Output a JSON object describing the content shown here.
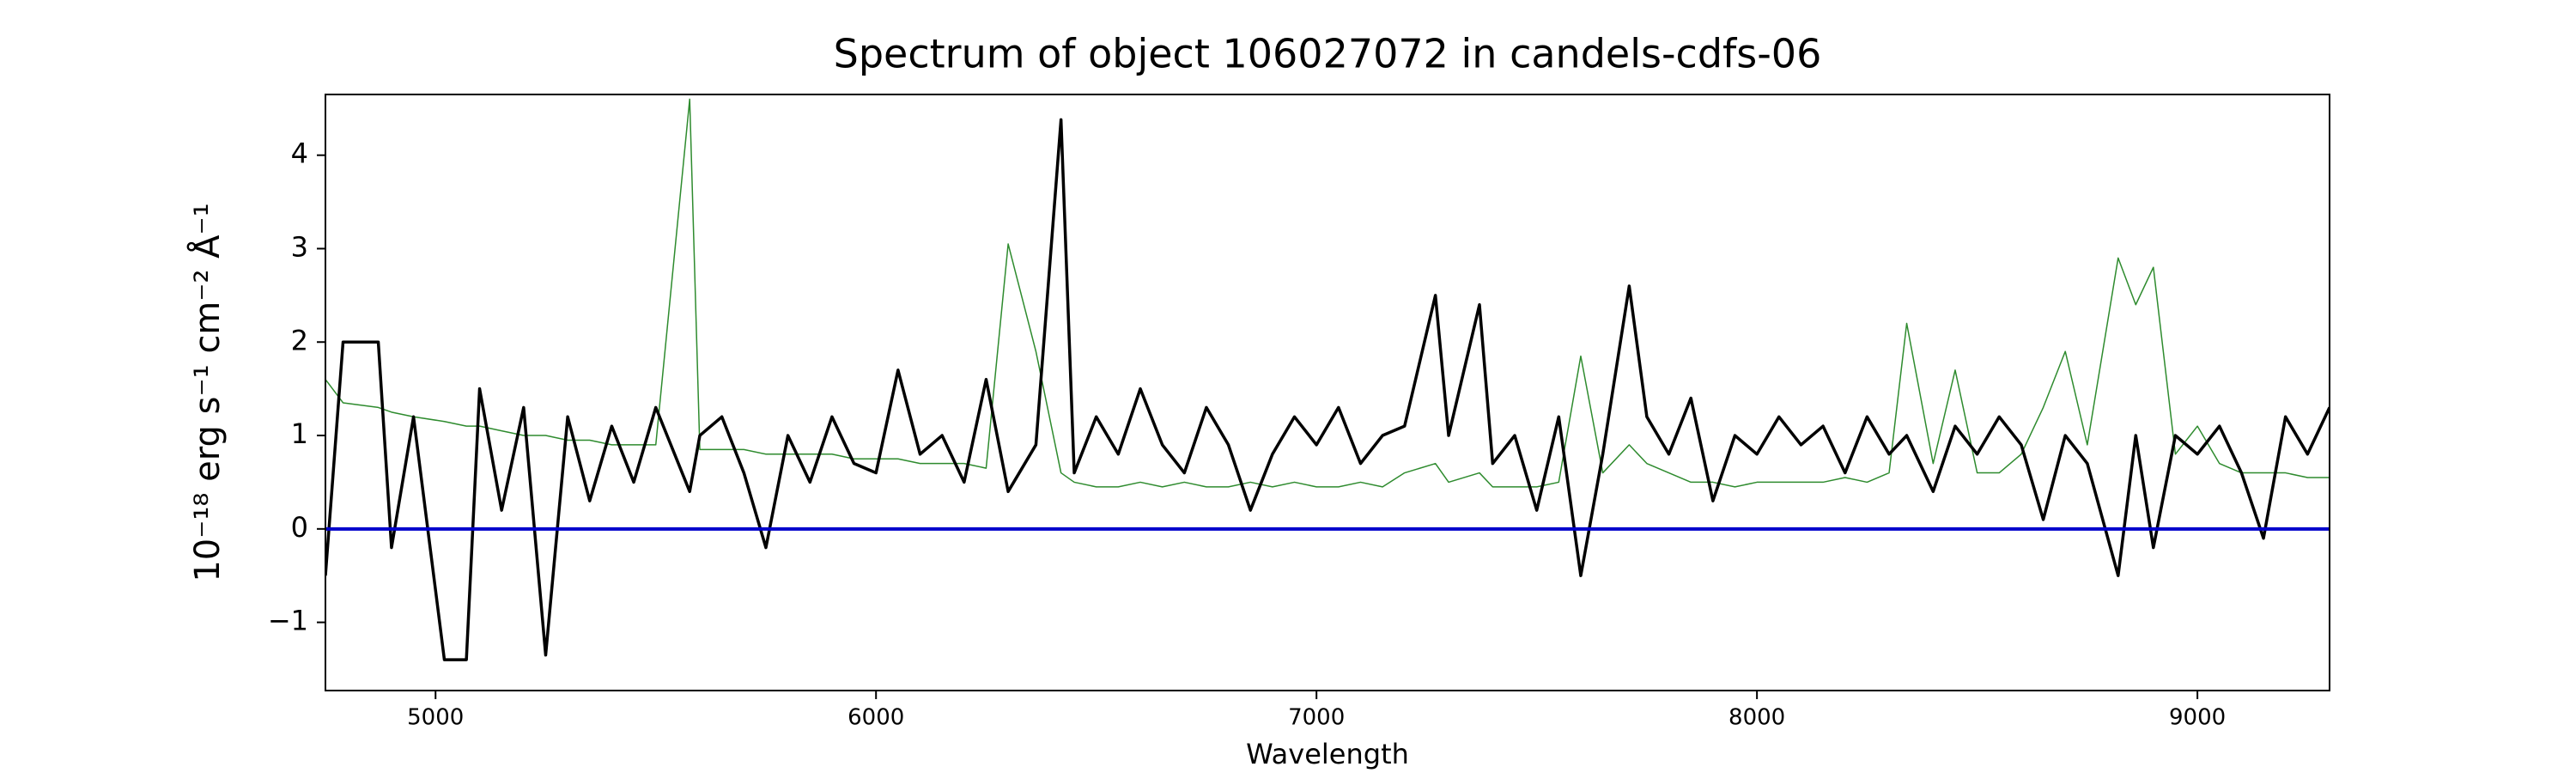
{
  "chart_data": {
    "type": "line",
    "title": "Spectrum of object 106027072 in candels-cdfs-06",
    "xlabel": "Wavelength",
    "ylabel": "10⁻¹⁸ erg s⁻¹ cm⁻² Å⁻¹",
    "x": [
      4750,
      4790,
      4870,
      4900,
      4950,
      5020,
      5070,
      5100,
      5150,
      5200,
      5250,
      5300,
      5350,
      5400,
      5450,
      5500,
      5577,
      5600,
      5650,
      5700,
      5750,
      5800,
      5850,
      5900,
      5950,
      6000,
      6050,
      6100,
      6150,
      6200,
      6250,
      6300,
      6363,
      6420,
      6450,
      6500,
      6550,
      6600,
      6650,
      6700,
      6750,
      6800,
      6850,
      6900,
      6950,
      7000,
      7050,
      7100,
      7150,
      7200,
      7270,
      7300,
      7370,
      7400,
      7450,
      7500,
      7550,
      7600,
      7650,
      7710,
      7750,
      7800,
      7850,
      7900,
      7950,
      8000,
      8050,
      8100,
      8150,
      8200,
      8250,
      8300,
      8340,
      8400,
      8450,
      8500,
      8550,
      8600,
      8650,
      8700,
      8750,
      8820,
      8860,
      8900,
      8950,
      9000,
      9050,
      9100,
      9150,
      9200,
      9250,
      9300
    ],
    "series": [
      {
        "color": "#2e8b2e",
        "values": [
          1.6,
          1.35,
          1.3,
          1.25,
          1.2,
          1.15,
          1.1,
          1.1,
          1.05,
          1.0,
          1.0,
          0.95,
          0.95,
          0.9,
          0.9,
          0.9,
          4.6,
          0.85,
          0.85,
          0.85,
          0.8,
          0.8,
          0.8,
          0.8,
          0.75,
          0.75,
          0.75,
          0.7,
          0.7,
          0.7,
          0.65,
          3.05,
          1.9,
          0.6,
          0.5,
          0.45,
          0.45,
          0.5,
          0.45,
          0.5,
          0.45,
          0.45,
          0.5,
          0.45,
          0.5,
          0.45,
          0.45,
          0.5,
          0.45,
          0.6,
          0.7,
          0.5,
          0.6,
          0.45,
          0.45,
          0.45,
          0.5,
          1.85,
          0.6,
          0.9,
          0.7,
          0.6,
          0.5,
          0.5,
          0.45,
          0.5,
          0.5,
          0.5,
          0.5,
          0.55,
          0.5,
          0.6,
          2.2,
          0.7,
          1.7,
          0.6,
          0.6,
          0.8,
          1.3,
          1.9,
          0.9,
          2.9,
          2.4,
          2.8,
          0.8,
          1.1,
          0.7,
          0.6,
          0.6,
          0.6,
          0.55,
          0.55
        ],
        "width": 1.5
      },
      {
        "color": "#000000",
        "values": [
          -0.5,
          2.0,
          2.0,
          -0.2,
          1.2,
          -1.4,
          -1.4,
          1.5,
          0.2,
          1.3,
          -1.35,
          1.2,
          0.3,
          1.1,
          0.5,
          1.3,
          0.4,
          1.0,
          1.2,
          0.6,
          -0.2,
          1.0,
          0.5,
          1.2,
          0.7,
          0.6,
          1.7,
          0.8,
          1.0,
          0.5,
          1.6,
          0.4,
          0.9,
          4.38,
          0.6,
          1.2,
          0.8,
          1.5,
          0.9,
          0.6,
          1.3,
          0.9,
          0.2,
          0.8,
          1.2,
          0.9,
          1.3,
          0.7,
          1.0,
          1.1,
          2.5,
          1.0,
          2.4,
          0.7,
          1.0,
          0.2,
          1.2,
          -0.5,
          0.8,
          2.6,
          1.2,
          0.8,
          1.4,
          0.3,
          1.0,
          0.8,
          1.2,
          0.9,
          1.1,
          0.6,
          1.2,
          0.8,
          1.0,
          0.4,
          1.1,
          0.8,
          1.2,
          0.9,
          0.1,
          1.0,
          0.7,
          -0.5,
          1.0,
          -0.2,
          1.0,
          0.8,
          1.1,
          0.6,
          -0.1,
          1.2,
          0.8,
          1.3
        ],
        "width": 3.5
      }
    ],
    "hlines": [
      {
        "value": 0,
        "color": "#0000cc"
      }
    ],
    "xlim": [
      4750,
      9300
    ],
    "ylim": [
      -1.73,
      4.65
    ],
    "xticks": [
      5000,
      6000,
      7000,
      8000,
      9000
    ],
    "yticks": [
      {
        "value": -1,
        "label": "−1"
      },
      0,
      1,
      2,
      3,
      4
    ]
  }
}
